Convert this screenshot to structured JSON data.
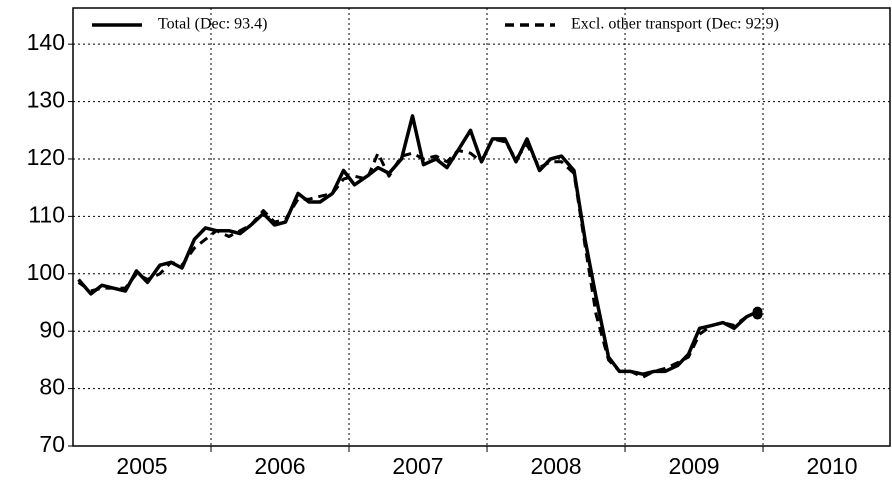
{
  "chart_data": {
    "type": "line",
    "x": [
      2005.04,
      2005.13,
      2005.21,
      2005.29,
      2005.38,
      2005.46,
      2005.54,
      2005.63,
      2005.71,
      2005.79,
      2005.88,
      2005.96,
      2006.04,
      2006.13,
      2006.21,
      2006.29,
      2006.38,
      2006.46,
      2006.54,
      2006.63,
      2006.71,
      2006.79,
      2006.88,
      2006.96,
      2007.04,
      2007.13,
      2007.21,
      2007.29,
      2007.38,
      2007.46,
      2007.54,
      2007.63,
      2007.71,
      2007.79,
      2007.88,
      2007.96,
      2008.04,
      2008.13,
      2008.21,
      2008.29,
      2008.38,
      2008.46,
      2008.54,
      2008.63,
      2008.71,
      2008.79,
      2008.88,
      2008.96,
      2009.04,
      2009.13,
      2009.21,
      2009.29,
      2009.38,
      2009.46,
      2009.54,
      2009.63,
      2009.71,
      2009.79,
      2009.88,
      2009.96
    ],
    "series": [
      {
        "name": "Total (Dec: 93.4)",
        "color": "#000000",
        "dash": false,
        "values": [
          99,
          96.5,
          98,
          97.5,
          97,
          100.5,
          98.5,
          101.5,
          102,
          101,
          106,
          108,
          107.5,
          107.5,
          107,
          108.5,
          110.5,
          108.5,
          109,
          114,
          112.5,
          112.5,
          114,
          118,
          115.5,
          117,
          118.5,
          117.5,
          120,
          127.5,
          119,
          120,
          118.5,
          121.5,
          125,
          119.5,
          123.5,
          123.5,
          119.5,
          123.5,
          118,
          120,
          120.5,
          118,
          106,
          96,
          85.5,
          83,
          83,
          82.5,
          83,
          83,
          84,
          86,
          90.5,
          91,
          91.5,
          90.5,
          92.5,
          93.4
        ]
      },
      {
        "name": "Excl. other transport (Dec: 92.9)",
        "color": "#000000",
        "dash": true,
        "values": [
          98.5,
          97,
          97.5,
          97.5,
          97.5,
          100,
          99,
          100,
          102,
          101.5,
          104.5,
          106,
          107.5,
          106.5,
          107.5,
          108.5,
          111,
          109,
          109.5,
          113,
          113,
          113.5,
          114,
          116.5,
          117,
          116.5,
          121,
          117,
          120.5,
          121,
          120,
          120.5,
          119.5,
          121.5,
          121,
          119.5,
          123.5,
          123,
          120,
          122.5,
          118.5,
          119.5,
          119.5,
          117.5,
          105,
          93,
          85,
          83,
          83,
          82,
          83,
          83.5,
          84.5,
          85.5,
          89.5,
          91,
          91.5,
          91,
          92.5,
          92.9
        ]
      }
    ],
    "xlim": [
      2005,
      2010.92
    ],
    "xticks": [
      {
        "value": 2005.5,
        "label": "2005"
      },
      {
        "value": 2006.5,
        "label": "2006"
      },
      {
        "value": 2007.5,
        "label": "2007"
      },
      {
        "value": 2008.5,
        "label": "2008"
      },
      {
        "value": 2009.5,
        "label": "2009"
      },
      {
        "value": 2010.5,
        "label": "2010"
      }
    ],
    "xgrid": [
      2006,
      2007,
      2008,
      2009,
      2010
    ],
    "ylim": [
      70,
      146.3
    ],
    "yticks": [
      70,
      80,
      90,
      100,
      110,
      120,
      130,
      140
    ],
    "grid": true,
    "legend": "top"
  }
}
